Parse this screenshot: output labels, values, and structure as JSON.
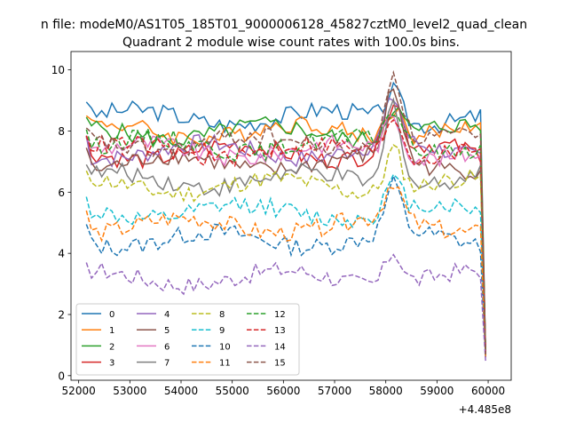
{
  "chart_data": {
    "type": "line",
    "suptitle": "n file: modeM0/AS1T05_185T01_9000006128_45827cztM0_level2_quad_clean",
    "title": "Quadrant 2 module wise count rates with 100.0s bins.",
    "xlabel": "",
    "ylabel": "",
    "x_offset_label": "+4.485e8",
    "xlim": [
      51850,
      60450
    ],
    "ylim": [
      -0.15,
      10.6
    ],
    "xticks": [
      52000,
      53000,
      54000,
      55000,
      56000,
      57000,
      58000,
      59000,
      60000
    ],
    "yticks": [
      0,
      2,
      4,
      6,
      8,
      10
    ],
    "x_start": 52150,
    "x_step": 100,
    "legend": {
      "placement": "lower-left",
      "columns": 4
    },
    "series": [
      {
        "name": "0",
        "color": "#1f77b4",
        "dash": "solid",
        "base": 8.45,
        "peak": 1.0,
        "final": 0.7
      },
      {
        "name": "1",
        "color": "#ff7f0e",
        "dash": "solid",
        "base": 8.0,
        "peak": 1.0,
        "final": 0.7
      },
      {
        "name": "2",
        "color": "#2ca02c",
        "dash": "solid",
        "base": 7.95,
        "peak": 1.0,
        "final": 0.7
      },
      {
        "name": "3",
        "color": "#d62728",
        "dash": "solid",
        "base": 7.3,
        "peak": 1.6,
        "final": 0.7
      },
      {
        "name": "4",
        "color": "#9467bd",
        "dash": "solid",
        "base": 7.35,
        "peak": 1.5,
        "final": 0.7
      },
      {
        "name": "5",
        "color": "#8c564b",
        "dash": "solid",
        "base": 6.95,
        "peak": 2.3,
        "final": 0.7
      },
      {
        "name": "6",
        "color": "#e377c2",
        "dash": "solid",
        "base": 7.35,
        "peak": 1.2,
        "final": 0.7
      },
      {
        "name": "7",
        "color": "#7f7f7f",
        "dash": "solid",
        "base": 6.4,
        "peak": 2.8,
        "final": 0.7
      },
      {
        "name": "8",
        "color": "#bcbd22",
        "dash": "dashed",
        "base": 6.2,
        "peak": 1.4,
        "final": 0.6
      },
      {
        "name": "9",
        "color": "#17becf",
        "dash": "dashed",
        "base": 5.35,
        "peak": 1.0,
        "final": 0.6
      },
      {
        "name": "10",
        "color": "#1f77b4",
        "dash": "dashed",
        "base": 4.45,
        "peak": 1.6,
        "final": 0.6
      },
      {
        "name": "11",
        "color": "#ff7f0e",
        "dash": "dashed",
        "base": 4.9,
        "peak": 1.3,
        "final": 0.6
      },
      {
        "name": "12",
        "color": "#2ca02c",
        "dash": "dashed",
        "base": 7.55,
        "peak": 1.2,
        "final": 0.7
      },
      {
        "name": "13",
        "color": "#d62728",
        "dash": "dashed",
        "base": 7.35,
        "peak": 1.4,
        "final": 0.7
      },
      {
        "name": "14",
        "color": "#9467bd",
        "dash": "dashed",
        "base": 3.2,
        "peak": 1.1,
        "final": 0.45
      },
      {
        "name": "15",
        "color": "#8c564b",
        "dash": "dashed",
        "base": 7.6,
        "peak": 2.4,
        "final": 0.7
      }
    ]
  }
}
